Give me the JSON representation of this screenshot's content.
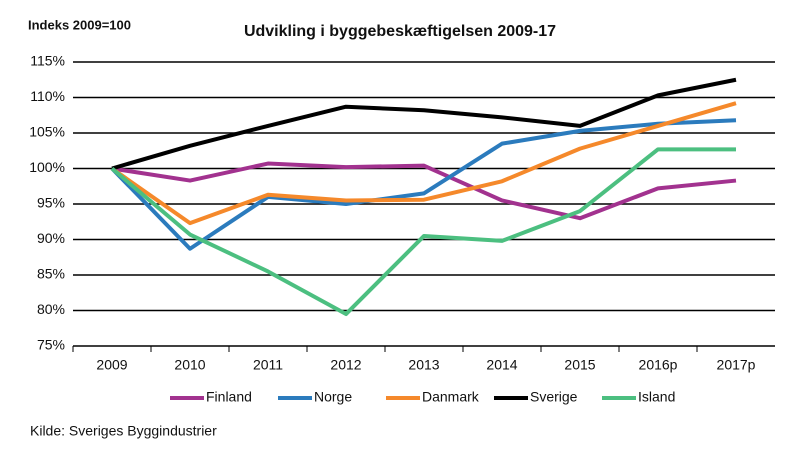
{
  "chart_data": {
    "type": "line",
    "title": "Udvikling i byggebeskæftigelsen 2009-17",
    "y_label": "Indeks 2009=100",
    "source": "Kilde: Sveriges Byggindustrier",
    "categories": [
      "2009",
      "2010",
      "2011",
      "2012",
      "2013",
      "2014",
      "2015",
      "2016p",
      "2017p"
    ],
    "ylim": [
      75,
      115
    ],
    "yticks": [
      {
        "value": 75,
        "label": "75%"
      },
      {
        "value": 80,
        "label": "80%"
      },
      {
        "value": 85,
        "label": "85%"
      },
      {
        "value": 90,
        "label": "90%"
      },
      {
        "value": 95,
        "label": "95%"
      },
      {
        "value": 100,
        "label": "100%"
      },
      {
        "value": 105,
        "label": "105%"
      },
      {
        "value": 110,
        "label": "110%"
      },
      {
        "value": 115,
        "label": "115%"
      }
    ],
    "grid": true,
    "legend": "bottom",
    "series": [
      {
        "name": "Finland",
        "color": "#a2328f",
        "values": [
          100,
          98.3,
          100.7,
          100.2,
          100.4,
          95.5,
          93,
          97.2,
          98.3
        ]
      },
      {
        "name": "Norge",
        "color": "#2b7bbd",
        "values": [
          100,
          88.7,
          96,
          95,
          96.5,
          103.5,
          105.3,
          106.3,
          106.8
        ]
      },
      {
        "name": "Danmark",
        "color": "#f5892b",
        "values": [
          100,
          92.3,
          96.3,
          95.5,
          95.6,
          98.2,
          102.8,
          106,
          109.2
        ]
      },
      {
        "name": "Sverige",
        "color": "#000000",
        "values": [
          100,
          103.2,
          106,
          108.7,
          108.2,
          107.2,
          106,
          110.3,
          112.5
        ]
      },
      {
        "name": "Island",
        "color": "#4cbf80",
        "values": [
          100,
          90.7,
          85.5,
          79.5,
          90.5,
          89.8,
          94,
          102.7,
          102.7
        ]
      }
    ]
  }
}
